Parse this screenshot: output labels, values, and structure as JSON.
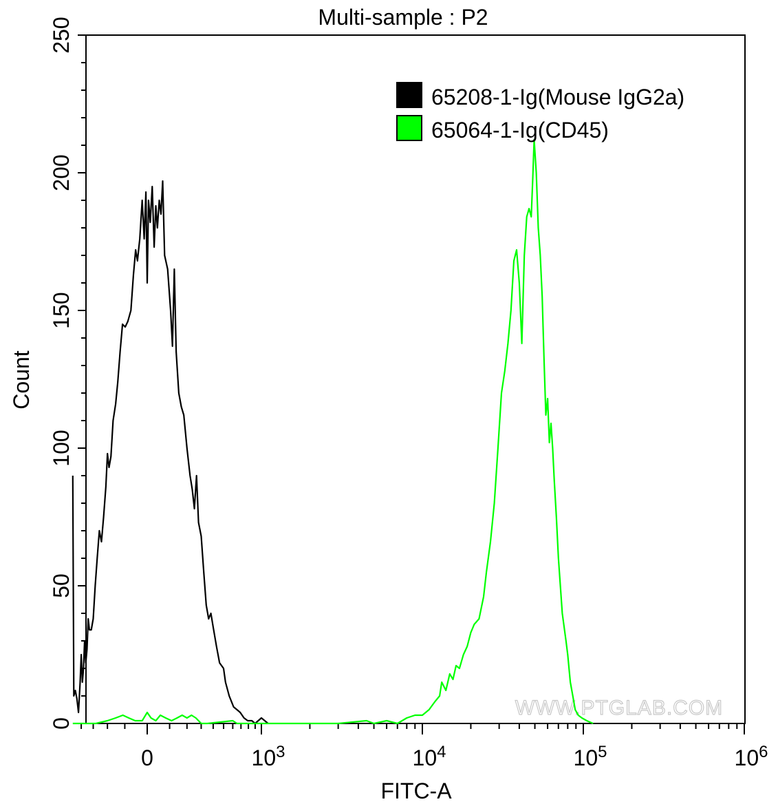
{
  "chart_data": {
    "type": "line",
    "title": "Multi-sample : P2",
    "xlabel": "FITC-A",
    "ylabel": "Count",
    "x_scale": "biexponential",
    "xlim": [
      -480,
      1000000
    ],
    "ylim": [
      0,
      250
    ],
    "grid": false,
    "legend_position": "top-right",
    "y_ticks": [
      0,
      50,
      100,
      150,
      200,
      250
    ],
    "x_ticks": [
      {
        "base": "0",
        "exp": "",
        "value": 0
      },
      {
        "base": "10",
        "exp": "3",
        "value": 1000
      },
      {
        "base": "10",
        "exp": "4",
        "value": 10000
      },
      {
        "base": "10",
        "exp": "5",
        "value": 100000
      },
      {
        "base": "10",
        "exp": "6",
        "value": 1000000
      }
    ],
    "watermark": "WWW.PTGLAB.COM",
    "series": [
      {
        "name": "65208-1-Ig(Mouse IgG2a)",
        "color": "#000000",
        "points": [
          [
            -480,
            90
          ],
          [
            -470,
            10
          ],
          [
            -455,
            12
          ],
          [
            -440,
            9
          ],
          [
            -425,
            4
          ],
          [
            -410,
            15
          ],
          [
            -400,
            25
          ],
          [
            -390,
            15
          ],
          [
            -380,
            20
          ],
          [
            -370,
            30
          ],
          [
            -360,
            22
          ],
          [
            -350,
            27
          ],
          [
            -340,
            38
          ],
          [
            -330,
            34
          ],
          [
            -315,
            34
          ],
          [
            -300,
            38
          ],
          [
            -285,
            50
          ],
          [
            -270,
            60
          ],
          [
            -255,
            70
          ],
          [
            -240,
            66
          ],
          [
            -225,
            75
          ],
          [
            -210,
            86
          ],
          [
            -200,
            98
          ],
          [
            -190,
            93
          ],
          [
            -178,
            97
          ],
          [
            -165,
            110
          ],
          [
            -150,
            116
          ],
          [
            -138,
            124
          ],
          [
            -125,
            135
          ],
          [
            -112,
            145
          ],
          [
            -98,
            144
          ],
          [
            -85,
            146
          ],
          [
            -70,
            150
          ],
          [
            -58,
            163
          ],
          [
            -48,
            172
          ],
          [
            -40,
            168
          ],
          [
            -30,
            176
          ],
          [
            -20,
            190
          ],
          [
            -12,
            176
          ],
          [
            -5,
            193
          ],
          [
            0,
            160
          ],
          [
            5,
            190
          ],
          [
            12,
            182
          ],
          [
            20,
            195
          ],
          [
            28,
            173
          ],
          [
            35,
            188
          ],
          [
            42,
            180
          ],
          [
            50,
            190
          ],
          [
            58,
            185
          ],
          [
            66,
            197
          ],
          [
            75,
            170
          ],
          [
            90,
            165
          ],
          [
            105,
            150
          ],
          [
            115,
            137
          ],
          [
            125,
            165
          ],
          [
            135,
            135
          ],
          [
            150,
            120
          ],
          [
            165,
            115
          ],
          [
            180,
            112
          ],
          [
            200,
            100
          ],
          [
            220,
            90
          ],
          [
            235,
            85
          ],
          [
            250,
            78
          ],
          [
            265,
            90
          ],
          [
            280,
            73
          ],
          [
            300,
            68
          ],
          [
            320,
            55
          ],
          [
            340,
            43
          ],
          [
            360,
            38
          ],
          [
            380,
            40
          ],
          [
            400,
            35
          ],
          [
            430,
            28
          ],
          [
            460,
            22
          ],
          [
            500,
            20
          ],
          [
            520,
            15
          ],
          [
            560,
            10
          ],
          [
            610,
            6
          ],
          [
            650,
            5
          ],
          [
            690,
            4
          ],
          [
            740,
            2
          ],
          [
            790,
            1
          ],
          [
            850,
            1
          ],
          [
            900,
            0
          ],
          [
            1000,
            2
          ],
          [
            1100,
            0
          ]
        ]
      },
      {
        "name": "65064-1-Ig(CD45)",
        "color": "#00ff00",
        "points": [
          [
            -480,
            0
          ],
          [
            -350,
            0
          ],
          [
            -280,
            0
          ],
          [
            -200,
            1
          ],
          [
            -150,
            2
          ],
          [
            -110,
            3
          ],
          [
            -80,
            2
          ],
          [
            -50,
            1
          ],
          [
            -20,
            1
          ],
          [
            0,
            4
          ],
          [
            15,
            2
          ],
          [
            35,
            1
          ],
          [
            55,
            3
          ],
          [
            80,
            2
          ],
          [
            110,
            1
          ],
          [
            140,
            2
          ],
          [
            170,
            3
          ],
          [
            200,
            2
          ],
          [
            230,
            3
          ],
          [
            260,
            2
          ],
          [
            280,
            1
          ],
          [
            300,
            0
          ],
          [
            350,
            0
          ],
          [
            600,
            1
          ],
          [
            650,
            0
          ],
          [
            1500,
            0
          ],
          [
            3000,
            0
          ],
          [
            4500,
            1
          ],
          [
            5000,
            0
          ],
          [
            6000,
            1
          ],
          [
            7000,
            0
          ],
          [
            8000,
            2
          ],
          [
            9000,
            3
          ],
          [
            10000,
            3
          ],
          [
            11000,
            5
          ],
          [
            12000,
            8
          ],
          [
            12800,
            10
          ],
          [
            13200,
            15
          ],
          [
            14000,
            12
          ],
          [
            14800,
            18
          ],
          [
            15500,
            16
          ],
          [
            16200,
            21
          ],
          [
            17000,
            20
          ],
          [
            18000,
            25
          ],
          [
            19000,
            28
          ],
          [
            20000,
            33
          ],
          [
            21000,
            36
          ],
          [
            22500,
            38
          ],
          [
            24000,
            46
          ],
          [
            25000,
            55
          ],
          [
            26500,
            66
          ],
          [
            28000,
            80
          ],
          [
            29500,
            100
          ],
          [
            31000,
            120
          ],
          [
            32500,
            128
          ],
          [
            34000,
            138
          ],
          [
            35500,
            150
          ],
          [
            37000,
            168
          ],
          [
            38500,
            172
          ],
          [
            40000,
            160
          ],
          [
            41500,
            138
          ],
          [
            43000,
            170
          ],
          [
            44500,
            184
          ],
          [
            46000,
            187
          ],
          [
            47500,
            184
          ],
          [
            48500,
            198
          ],
          [
            49500,
            212
          ],
          [
            51000,
            200
          ],
          [
            52500,
            180
          ],
          [
            54000,
            170
          ],
          [
            55500,
            155
          ],
          [
            57000,
            132
          ],
          [
            58500,
            112
          ],
          [
            60000,
            118
          ],
          [
            61500,
            102
          ],
          [
            63000,
            109
          ],
          [
            64500,
            100
          ],
          [
            66000,
            88
          ],
          [
            68000,
            75
          ],
          [
            70000,
            60
          ],
          [
            72000,
            50
          ],
          [
            74000,
            40
          ],
          [
            76000,
            35
          ],
          [
            78000,
            30
          ],
          [
            80000,
            25
          ],
          [
            83000,
            15
          ],
          [
            86000,
            10
          ],
          [
            89000,
            5
          ],
          [
            93000,
            3
          ],
          [
            98000,
            2
          ],
          [
            105000,
            1
          ],
          [
            115000,
            0
          ]
        ]
      }
    ]
  }
}
